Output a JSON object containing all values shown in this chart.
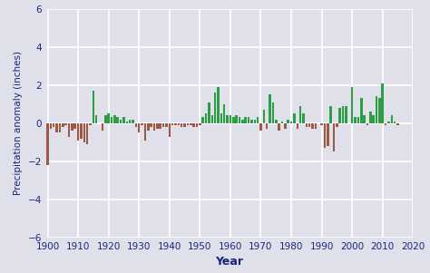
{
  "title": "",
  "xlabel": "Year",
  "ylabel": "Precipitation anomaly (inches)",
  "xlim": [
    1899.5,
    2019.5
  ],
  "ylim": [
    -6,
    6
  ],
  "yticks": [
    -6,
    -4,
    -2,
    0,
    2,
    4,
    6
  ],
  "xticks": [
    1900,
    1910,
    1920,
    1930,
    1940,
    1950,
    1960,
    1970,
    1980,
    1990,
    2000,
    2010,
    2020
  ],
  "bg_color": "#dfe0ea",
  "positive_color": "#2e9e45",
  "negative_color": "#9e5843",
  "years": [
    1900,
    1901,
    1902,
    1903,
    1904,
    1905,
    1906,
    1907,
    1908,
    1909,
    1910,
    1911,
    1912,
    1913,
    1914,
    1915,
    1916,
    1917,
    1918,
    1919,
    1920,
    1921,
    1922,
    1923,
    1924,
    1925,
    1926,
    1927,
    1928,
    1929,
    1930,
    1931,
    1932,
    1933,
    1934,
    1935,
    1936,
    1937,
    1938,
    1939,
    1940,
    1941,
    1942,
    1943,
    1944,
    1945,
    1946,
    1947,
    1948,
    1949,
    1950,
    1951,
    1952,
    1953,
    1954,
    1955,
    1956,
    1957,
    1958,
    1959,
    1960,
    1961,
    1962,
    1963,
    1964,
    1965,
    1966,
    1967,
    1968,
    1969,
    1970,
    1971,
    1972,
    1973,
    1974,
    1975,
    1976,
    1977,
    1978,
    1979,
    1980,
    1981,
    1982,
    1983,
    1984,
    1985,
    1986,
    1987,
    1988,
    1989,
    1990,
    1991,
    1992,
    1993,
    1994,
    1995,
    1996,
    1997,
    1998,
    1999,
    2000,
    2001,
    2002,
    2003,
    2004,
    2005,
    2006,
    2007,
    2008,
    2009,
    2010,
    2011,
    2012,
    2013,
    2014,
    2015
  ],
  "values": [
    -2.2,
    -0.3,
    -0.2,
    -0.5,
    -0.5,
    -0.2,
    -0.1,
    -0.7,
    -0.4,
    -0.3,
    -0.9,
    -0.8,
    -1.0,
    -1.1,
    -0.1,
    1.7,
    0.4,
    0.0,
    -0.4,
    0.4,
    0.5,
    0.3,
    0.4,
    0.3,
    0.2,
    0.3,
    0.1,
    0.2,
    0.2,
    -0.2,
    -0.5,
    -0.1,
    -0.9,
    -0.4,
    -0.2,
    -0.4,
    -0.3,
    -0.3,
    -0.2,
    -0.2,
    -0.7,
    -0.1,
    -0.1,
    -0.1,
    -0.2,
    -0.2,
    -0.1,
    -0.1,
    -0.2,
    -0.2,
    -0.1,
    0.3,
    0.5,
    1.1,
    0.4,
    1.6,
    1.9,
    0.5,
    1.0,
    0.4,
    0.4,
    0.3,
    0.4,
    0.3,
    0.2,
    0.3,
    0.3,
    0.2,
    0.2,
    0.3,
    -0.4,
    0.7,
    -0.3,
    1.5,
    1.1,
    0.2,
    -0.4,
    0.1,
    -0.3,
    0.2,
    0.1,
    0.5,
    -0.3,
    0.9,
    0.5,
    -0.2,
    -0.2,
    -0.3,
    -0.3,
    0.0,
    -0.1,
    -1.3,
    -1.2,
    0.9,
    -1.5,
    -0.2,
    0.8,
    0.9,
    0.9,
    0.0,
    1.9,
    0.3,
    0.3,
    1.3,
    0.4,
    -0.1,
    0.6,
    0.4,
    1.4,
    1.3,
    2.1,
    -0.1,
    0.1,
    0.4,
    0.1,
    -0.1
  ],
  "figsize": [
    4.74,
    3.01
  ],
  "dpi": 100
}
